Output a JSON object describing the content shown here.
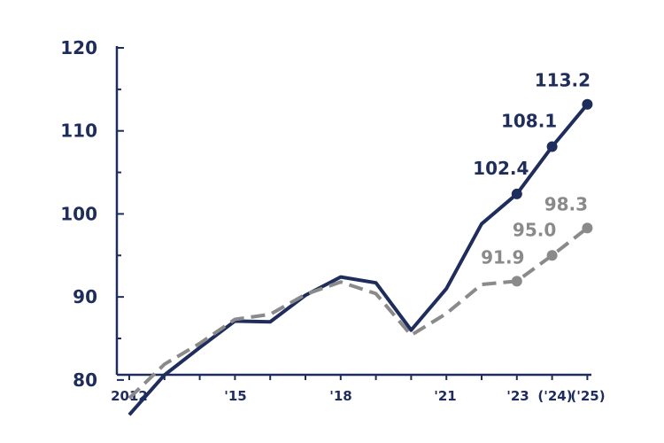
{
  "chart_data": {
    "type": "line",
    "title": "",
    "xlabel": "",
    "ylabel": "",
    "ylim": [
      75,
      120
    ],
    "yticks": [
      80,
      90,
      100,
      110,
      120
    ],
    "x": [
      2012,
      2013,
      2014,
      2015,
      2016,
      2017,
      2018,
      2019,
      2020,
      2021,
      2022,
      2023,
      2024,
      2025
    ],
    "xtick_labels": [
      {
        "x": 2012,
        "label": "2012"
      },
      {
        "x": 2015,
        "label": "'15"
      },
      {
        "x": 2018,
        "label": "'18"
      },
      {
        "x": 2021,
        "label": "'21"
      },
      {
        "x": 2023,
        "label": "'23"
      },
      {
        "x": 2024,
        "label": "('24)"
      },
      {
        "x": 2025,
        "label": "('25)"
      }
    ],
    "series": [
      {
        "style": "solid",
        "color": "#1f2d5c",
        "values": [
          75.8,
          80.6,
          83.9,
          87.1,
          87.0,
          90.2,
          92.4,
          91.7,
          86.0,
          91.0,
          98.8,
          102.4,
          108.1,
          113.2
        ],
        "labeled": [
          {
            "x": 2023,
            "label": "102.4"
          },
          {
            "x": 2024,
            "label": "108.1"
          },
          {
            "x": 2025,
            "label": "113.2"
          }
        ]
      },
      {
        "style": "dashed",
        "color": "#8a8a8a",
        "values": [
          77.8,
          81.9,
          84.4,
          87.3,
          87.9,
          90.3,
          91.8,
          90.4,
          85.4,
          88.0,
          91.5,
          91.9,
          95.0,
          98.3
        ],
        "labeled": [
          {
            "x": 2023,
            "label": "91.9"
          },
          {
            "x": 2024,
            "label": "95.0"
          },
          {
            "x": 2025,
            "label": "98.3"
          }
        ]
      }
    ],
    "grid": false,
    "legend": "none"
  }
}
